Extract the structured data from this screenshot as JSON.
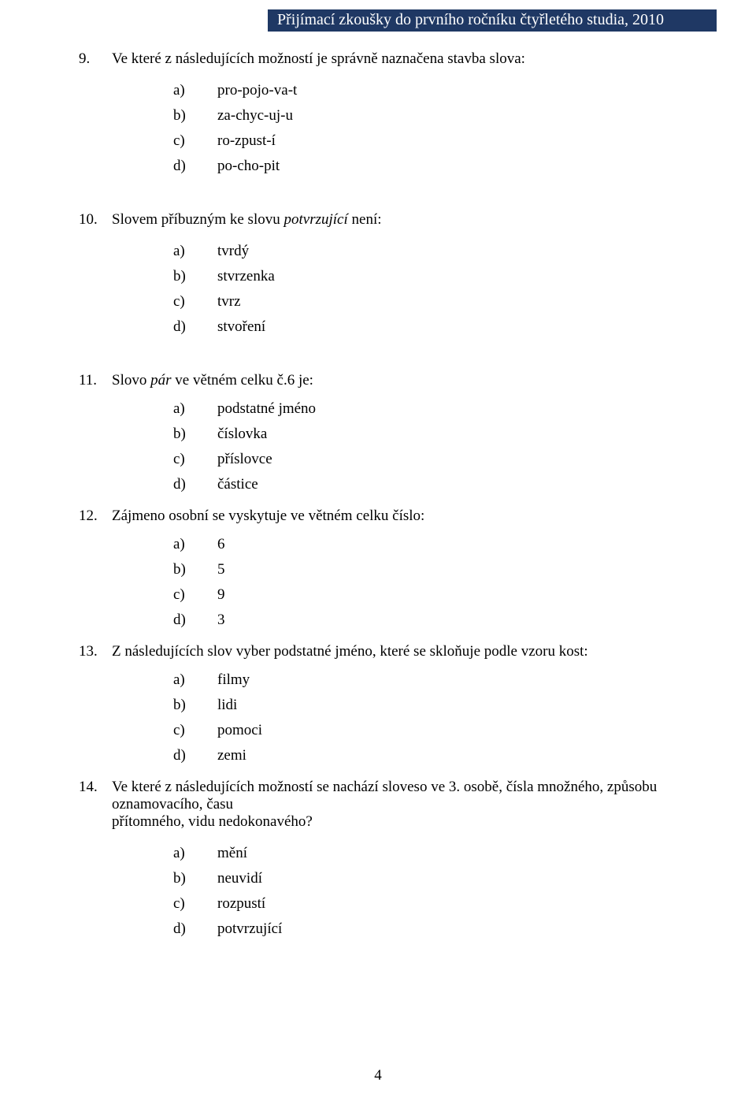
{
  "header": {
    "text": "Přijímací zkoušky do prvního ročníku čtyřletého studia, 2010",
    "bg_color": "#1f3864",
    "text_color": "#ffffff"
  },
  "page_number": "4",
  "questions": [
    {
      "number": "9.",
      "text_parts": [
        {
          "t": "Ve které z následujících možností je správně naznačena stavba slova:",
          "italic": false
        }
      ],
      "options": [
        {
          "letter": "a)",
          "text": "pro-pojo-va-t"
        },
        {
          "letter": "b)",
          "text": "za-chyc-uj-u"
        },
        {
          "letter": "c)",
          "text": "ro-zpust-í"
        },
        {
          "letter": "d)",
          "text": "po-cho-pit"
        }
      ]
    },
    {
      "number": "10.",
      "text_parts": [
        {
          "t": "Slovem příbuzným ke slovu ",
          "italic": false
        },
        {
          "t": "potvrzující",
          "italic": true
        },
        {
          "t": " není:",
          "italic": false
        }
      ],
      "options": [
        {
          "letter": "a)",
          "text": "tvrdý"
        },
        {
          "letter": "b)",
          "text": "stvrzenka"
        },
        {
          "letter": "c)",
          "text": "tvrz"
        },
        {
          "letter": "d)",
          "text": "stvoření"
        }
      ]
    },
    {
      "number": "11.",
      "text_parts": [
        {
          "t": "Slovo ",
          "italic": false
        },
        {
          "t": "pár",
          "italic": true
        },
        {
          "t": " ve větném celku č.6 je:",
          "italic": false
        }
      ],
      "options": [
        {
          "letter": "a)",
          "text": "podstatné jméno"
        },
        {
          "letter": "b)",
          "text": "číslovka"
        },
        {
          "letter": "c)",
          "text": "příslovce"
        },
        {
          "letter": "d)",
          "text": "částice"
        }
      ]
    },
    {
      "number": "12.",
      "text_parts": [
        {
          "t": "Zájmeno osobní se vyskytuje ve větném celku číslo:",
          "italic": false
        }
      ],
      "options": [
        {
          "letter": "a)",
          "text": "6"
        },
        {
          "letter": "b)",
          "text": "5"
        },
        {
          "letter": "c)",
          "text": "9"
        },
        {
          "letter": "d)",
          "text": "3"
        }
      ]
    },
    {
      "number": "13.",
      "text_parts": [
        {
          "t": "Z následujících slov vyber podstatné jméno, které se skloňuje podle vzoru kost:",
          "italic": false
        }
      ],
      "options": [
        {
          "letter": "a)",
          "text": "filmy"
        },
        {
          "letter": "b)",
          "text": "lidi"
        },
        {
          "letter": "c)",
          "text": "pomoci"
        },
        {
          "letter": "d)",
          "text": "zemi"
        }
      ]
    },
    {
      "number": "14.",
      "text_parts": [
        {
          "t": "Ve které z následujících možností  se nachází sloveso ve 3. osobě, čísla množného, způsobu oznamovacího, času",
          "italic": false
        }
      ],
      "continuation": "přítomného, vidu nedokonavého?",
      "options": [
        {
          "letter": "a)",
          "text": "mění"
        },
        {
          "letter": "b)",
          "text": "neuvidí"
        },
        {
          "letter": "c)",
          "text": "rozpustí"
        },
        {
          "letter": "d)",
          "text": "potvrzující"
        }
      ]
    }
  ]
}
